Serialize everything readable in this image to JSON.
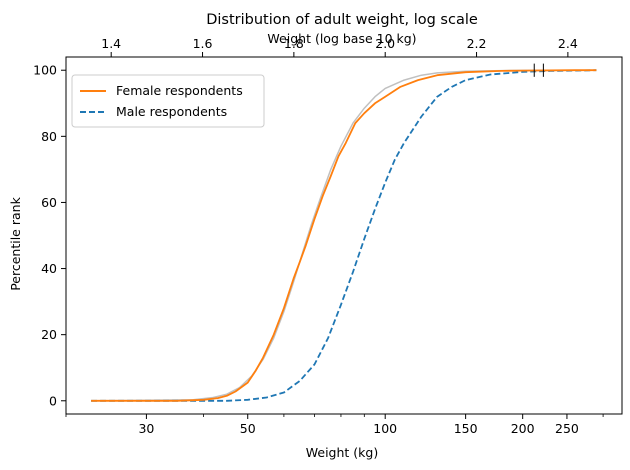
{
  "chart_data": {
    "type": "line",
    "title": "Distribution of adult weight, log scale",
    "xlabel": "Weight (kg)",
    "ylabel": "Percentile rank",
    "top_xlabel": "Weight (log base 10 kg)",
    "xscale": "log",
    "xlim": [
      20,
      330
    ],
    "ylim": [
      -4,
      104
    ],
    "xticks": [
      30,
      50,
      100,
      150,
      200,
      250
    ],
    "top_ticks": [
      1.4,
      1.6,
      1.8,
      2.0,
      2.2,
      2.4
    ],
    "yticks": [
      0,
      20,
      40,
      60,
      80,
      100
    ],
    "legend_position": "top-left",
    "grid": false,
    "series": [
      {
        "name": "Female respondents",
        "color": "#ff7f0e",
        "style": "solid",
        "points": [
          [
            22.7,
            0
          ],
          [
            35,
            0
          ],
          [
            40,
            0.3
          ],
          [
            43,
            0.8
          ],
          [
            45,
            1.5
          ],
          [
            47,
            2.8
          ],
          [
            50,
            5.5
          ],
          [
            52,
            9
          ],
          [
            54,
            13
          ],
          [
            57,
            20
          ],
          [
            60,
            28
          ],
          [
            63,
            37
          ],
          [
            65,
            42
          ],
          [
            67,
            47
          ],
          [
            70,
            55
          ],
          [
            73,
            62
          ],
          [
            76,
            68
          ],
          [
            79,
            74
          ],
          [
            82,
            78
          ],
          [
            86,
            84
          ],
          [
            90,
            87
          ],
          [
            95,
            90
          ],
          [
            100,
            92
          ],
          [
            108,
            95
          ],
          [
            118,
            97
          ],
          [
            130,
            98.5
          ],
          [
            150,
            99.4
          ],
          [
            180,
            99.8
          ],
          [
            200,
            99.9
          ],
          [
            260,
            100
          ],
          [
            290,
            100
          ]
        ]
      },
      {
        "name": "Male respondents",
        "color": "#1f77b4",
        "style": "dashed",
        "points": [
          [
            22.7,
            0
          ],
          [
            45,
            0
          ],
          [
            50,
            0.3
          ],
          [
            55,
            1
          ],
          [
            60,
            2.5
          ],
          [
            65,
            6
          ],
          [
            70,
            11
          ],
          [
            75,
            19
          ],
          [
            80,
            29
          ],
          [
            85,
            39
          ],
          [
            90,
            49
          ],
          [
            95,
            58
          ],
          [
            100,
            66
          ],
          [
            105,
            73
          ],
          [
            110,
            78
          ],
          [
            120,
            86
          ],
          [
            130,
            92
          ],
          [
            140,
            95
          ],
          [
            150,
            97
          ],
          [
            170,
            98.7
          ],
          [
            200,
            99.5
          ],
          [
            230,
            99.8
          ],
          [
            260,
            99.9
          ],
          [
            290,
            100
          ]
        ]
      },
      {
        "name": "",
        "color": "#c0c0c0",
        "style": "solid",
        "points": [
          [
            22.7,
            0
          ],
          [
            38,
            0.3
          ],
          [
            42,
            1
          ],
          [
            45,
            2
          ],
          [
            48,
            4
          ],
          [
            51,
            7.5
          ],
          [
            54,
            12.5
          ],
          [
            57,
            19
          ],
          [
            60,
            27
          ],
          [
            63,
            36
          ],
          [
            66,
            45
          ],
          [
            69,
            53.5
          ],
          [
            72,
            61
          ],
          [
            76,
            70
          ],
          [
            80,
            77
          ],
          [
            85,
            84
          ],
          [
            90,
            88.5
          ],
          [
            95,
            92
          ],
          [
            100,
            94.5
          ],
          [
            110,
            97
          ],
          [
            120,
            98.5
          ],
          [
            130,
            99.2
          ],
          [
            150,
            99.7
          ],
          [
            180,
            99.9
          ],
          [
            220,
            100
          ],
          [
            290,
            100
          ]
        ]
      }
    ],
    "markers": [
      {
        "type": "vline",
        "x": 212,
        "y_from": 98,
        "y_to": 102
      },
      {
        "type": "vline",
        "x": 222,
        "y_from": 98,
        "y_to": 102
      }
    ]
  }
}
